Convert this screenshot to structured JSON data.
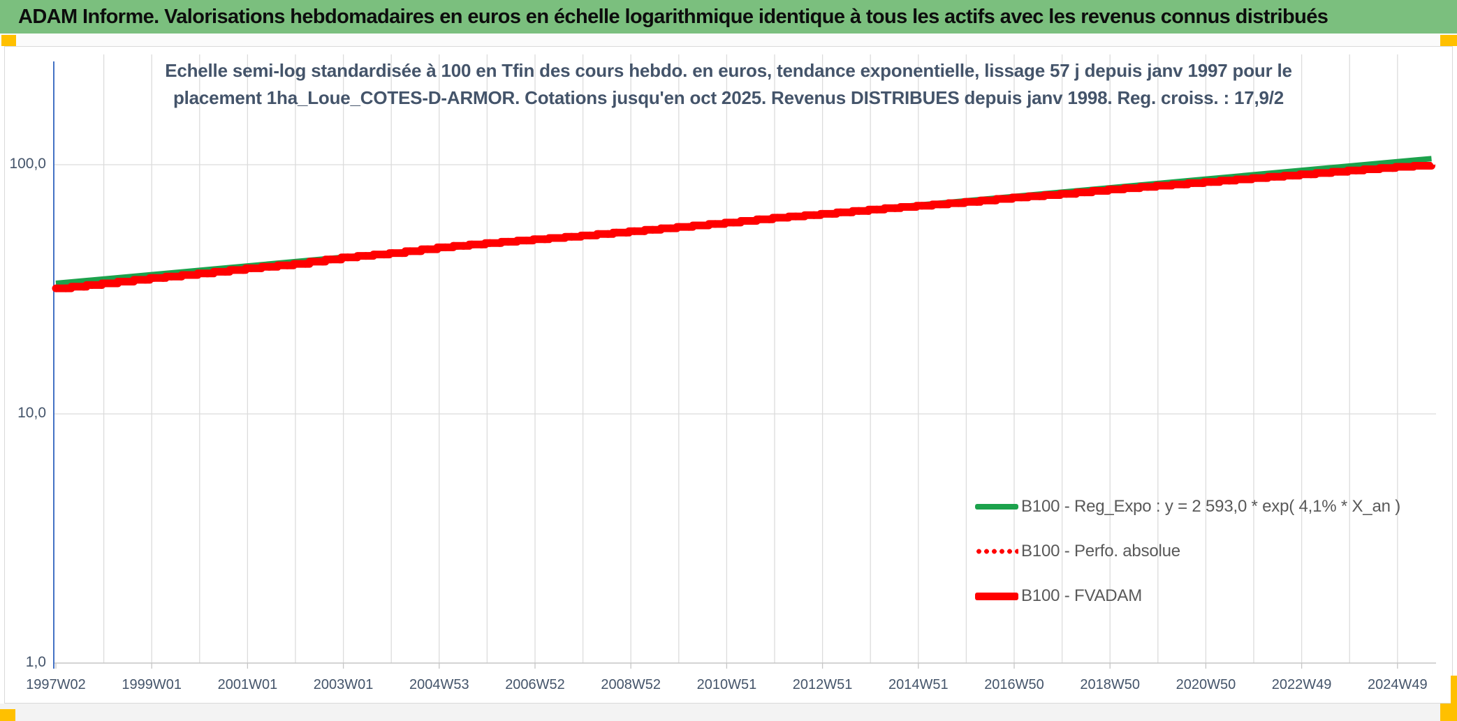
{
  "header": {
    "title": "ADAM Informe. Valorisations hebdomadaires en euros en échelle logarithmique identique à tous les actifs avec les revenus connus distribués"
  },
  "chart": {
    "title_line1": "Echelle semi-log standardisée à 100 en Tfin des cours hebdo. en euros, tendance exponentielle, lissage 57 j depuis janv 1997 pour le",
    "title_line2": "placement 1ha_Loue_COTES-D-ARMOR. Cotations jusqu'en oct 2025. Revenus DISTRIBUES depuis janv 1998. Reg. croiss. : 17,9/2"
  },
  "colors": {
    "header_bg": "#7BBF7E",
    "corner_marker": "#FFC000",
    "title_text": "#44546A",
    "axis_blue": "#4472C4",
    "gridline": "#dcdcdc",
    "regression_green": "#1CA24C",
    "series_red": "#FF0000",
    "legend_text": "#595959"
  },
  "chart_data": {
    "type": "line",
    "title": "Echelle semi-log standardisée à 100 en Tfin des cours hebdo. en euros, tendance exponentielle, lissage 57 j depuis janv 1997 pour le placement 1ha_Loue_COTES-D-ARMOR. Cotations jusqu'en oct 2025. Revenus DISTRIBUES depuis janv 1998. Reg. croiss. : 17,9/2",
    "xlabel": "",
    "ylabel": "",
    "y_scale": "log",
    "ylim": [
      1,
      200
    ],
    "x_range_years": [
      1997.04,
      2025.75
    ],
    "grid": {
      "vertical_every_years": 1,
      "horizontal_at": [
        100,
        10,
        1
      ]
    },
    "y_ticks": [
      {
        "label": "100,0",
        "value": 100
      },
      {
        "label": "10,0",
        "value": 10
      },
      {
        "label": "1,0",
        "value": 1
      }
    ],
    "x_ticks": [
      "1997W02",
      "1999W01",
      "2001W01",
      "2003W01",
      "2004W53",
      "2006W52",
      "2008W52",
      "2010W51",
      "2012W51",
      "2014W51",
      "2016W50",
      "2018W50",
      "2020W50",
      "2022W49",
      "2024W49"
    ],
    "legend_position": "inside-lower-right",
    "points": {
      "reg_expo": [
        [
          1997.04,
          33.4
        ],
        [
          2025.75,
          105.8
        ]
      ],
      "fvadam": [
        [
          1997.04,
          31.9
        ],
        [
          1998,
          33.4
        ],
        [
          1999,
          35.1
        ],
        [
          2000,
          36.6
        ],
        [
          2001,
          38.4
        ],
        [
          2002,
          40.0
        ],
        [
          2003,
          42.5
        ],
        [
          2004,
          44.2
        ],
        [
          2005,
          46.6
        ],
        [
          2006,
          48.5
        ],
        [
          2007,
          50.2
        ],
        [
          2008,
          52.0
        ],
        [
          2009,
          54.1
        ],
        [
          2010,
          56.3
        ],
        [
          2011,
          58.6
        ],
        [
          2012,
          61.3
        ],
        [
          2013,
          63.5
        ],
        [
          2014,
          66.1
        ],
        [
          2015,
          68.5
        ],
        [
          2016,
          70.9
        ],
        [
          2017,
          73.9
        ],
        [
          2018,
          76.4
        ],
        [
          2019,
          79.6
        ],
        [
          2020,
          82.4
        ],
        [
          2021,
          85.3
        ],
        [
          2022,
          88.4
        ],
        [
          2023,
          91.5
        ],
        [
          2024,
          94.8
        ],
        [
          2025,
          98.1
        ],
        [
          2025.75,
          100.0
        ]
      ]
    },
    "series": [
      {
        "name": "B100 - Reg_Expo : y = 2 593,0 * exp( 4,1% *  X_an )",
        "color": "#1CA24C",
        "style": "solid",
        "width": 8,
        "shape": "straight",
        "points_key": "reg_expo"
      },
      {
        "name": "B100 - Perfo. absolue",
        "color": "#FF0000",
        "style": "dotted",
        "width": 11,
        "shape": "stepped",
        "points_key": "fvadam"
      },
      {
        "name": "B100 - FVADAM",
        "color": "#FF0000",
        "style": "solid",
        "width": 11,
        "shape": "stepped",
        "points_key": "fvadam"
      }
    ],
    "regression": {
      "formula": "y = 2 593,0 * exp( 4,1% * X_an )",
      "growth_rate_pct_per_year": 4.1,
      "coefficient": 2593.0
    },
    "final_value_standardized": 100.0
  }
}
